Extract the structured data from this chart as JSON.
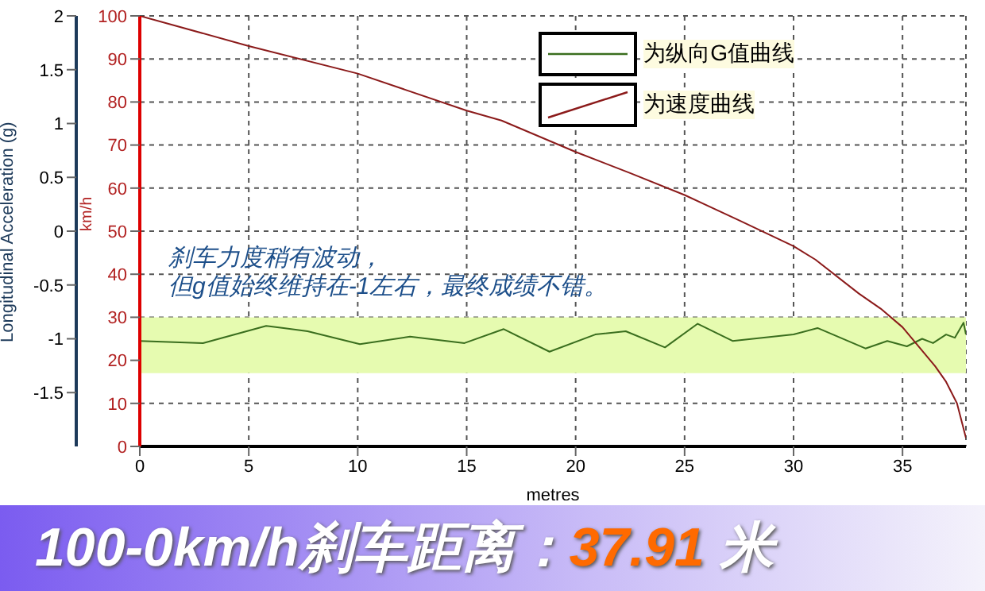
{
  "chart_data": {
    "type": "line",
    "title": "100-0km/h刹车距离：37.91 米",
    "xlabel": "metres",
    "ylabel": "km/h",
    "y2label": "Longitudinal Acceleration (g)",
    "annotations": [
      "刹车力度稍有波动，",
      "但g值始终维持在-1左右，最终成绩不错。"
    ],
    "series": [
      {
        "name": "为纵向G值曲线",
        "color": "#3a6e1e",
        "axis": "y2",
        "x": [
          0,
          2.9,
          5.8,
          6.6,
          7.7,
          10.1,
          12.4,
          14.9,
          16.7,
          18.8,
          20.9,
          22.3,
          24.1,
          25.6,
          27.2,
          30.0,
          31.1,
          33.3,
          34.3,
          35.2,
          35.9,
          36.4,
          37.0,
          37.4,
          37.8,
          37.91
        ],
        "values": [
          -1.02,
          -1.04,
          -0.88,
          -0.9,
          -0.93,
          -1.05,
          -0.98,
          -1.04,
          -0.91,
          -1.12,
          -0.96,
          -0.93,
          -1.08,
          -0.86,
          -1.02,
          -0.96,
          -0.9,
          -1.09,
          -1.02,
          -1.07,
          -1.0,
          -1.04,
          -0.96,
          -0.99,
          -0.85,
          -0.96
        ]
      },
      {
        "name": "为速度曲线",
        "color": "#8b1a1a",
        "axis": "y",
        "x": [
          0,
          5,
          10,
          15,
          16.6,
          20,
          22.5,
          25,
          27.5,
          30,
          31,
          33,
          34,
          35,
          36.5,
          37,
          37.5,
          37.91
        ],
        "values": [
          100,
          93,
          86.6,
          78,
          75.7,
          68.4,
          63.5,
          58.4,
          52.5,
          46.5,
          43.4,
          35.5,
          32,
          27.7,
          18.6,
          15,
          10,
          2
        ]
      }
    ],
    "xlim": [
      0,
      37.91
    ],
    "xticks": [
      0,
      5,
      10,
      15,
      20,
      25,
      30,
      35
    ],
    "ylim": [
      0,
      100
    ],
    "yticks": [
      0,
      10,
      20,
      30,
      40,
      50,
      60,
      70,
      80,
      90,
      100
    ],
    "y2lim": [
      -2,
      2
    ],
    "y2ticks": [
      -1.5,
      -1,
      -0.5,
      0,
      0.5,
      1,
      1.5,
      2
    ],
    "bands": [
      {
        "axis": "y",
        "from": 17,
        "to": 30,
        "color": "#e6fbb0"
      }
    ],
    "grid": true,
    "legend": "top right",
    "line_style": "solid",
    "marker": "none"
  }
}
